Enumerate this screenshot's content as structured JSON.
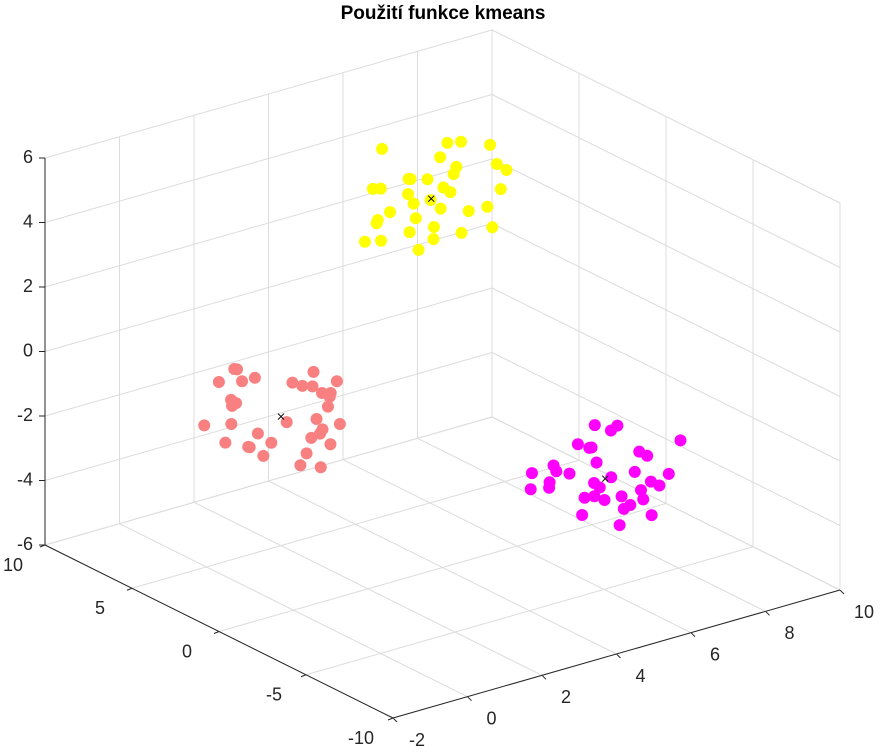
{
  "chart_data": {
    "type": "scatter3d",
    "title": "Použití funkce kmeans",
    "xlim": [
      -2,
      10
    ],
    "xticks": [
      -2,
      0,
      2,
      4,
      6,
      8,
      10
    ],
    "ylim": [
      -10,
      10
    ],
    "yticks": [
      -10,
      -5,
      0,
      5,
      10
    ],
    "zlim": [
      -6,
      6
    ],
    "zticks": [
      -6,
      -4,
      -2,
      0,
      2,
      4,
      6
    ],
    "grid": true,
    "series": [
      {
        "color": "#ffff00",
        "marker": "o",
        "x": [
          6.8,
          5.3,
          7.3,
          8.0,
          6.1,
          5.6,
          7.6,
          6.5,
          5.0,
          7.1,
          7.8,
          6.3,
          5.8,
          7.4,
          5.4,
          6.9,
          8.1,
          6.0,
          6.7,
          5.2,
          7.2,
          6.4,
          7.5,
          5.7,
          7.0,
          5.1,
          7.7,
          6.2,
          6.6,
          5.9,
          7.3,
          5.5,
          7.9,
          6.7,
          5.6
        ],
        "y": [
          5.2,
          6.5,
          7.2,
          5.7,
          4.6,
          6.9,
          6.2,
          4.9,
          6.6,
          7.5,
          5.4,
          6.3,
          5.8,
          4.7,
          7.0,
          6.7,
          5.1,
          7.3,
          5.5,
          6.1,
          6.8,
          4.5,
          6.4,
          5.3,
          7.1,
          5.9,
          4.8,
          6.6,
          7.4,
          5.6,
          6.0,
          7.0,
          5.0,
          6.3,
          5.4
        ],
        "z": [
          4.1,
          2.6,
          3.7,
          1.7,
          3.2,
          4.6,
          2.2,
          3.5,
          2.0,
          3.0,
          4.4,
          1.4,
          3.9,
          2.8,
          3.4,
          1.8,
          3.6,
          2.4,
          4.8,
          2.1,
          2.9,
          4.2,
          1.5,
          3.3,
          2.5,
          3.8,
          4.0,
          1.9,
          3.2,
          2.7,
          4.5,
          2.3,
          3.1,
          1.6,
          3.6
        ]
      },
      {
        "color": "#f88080",
        "marker": "o",
        "x": [
          1.2,
          2.5,
          3.2,
          1.7,
          0.6,
          2.9,
          2.2,
          0.9,
          2.6,
          3.5,
          1.4,
          2.3,
          1.8,
          0.7,
          3.0,
          2.7,
          1.1,
          3.3,
          1.5,
          2.1,
          2.8,
          0.5,
          2.4,
          1.3,
          3.1,
          1.9,
          0.8,
          2.6,
          3.4,
          1.6,
          2.0,
          3.0,
          1.0,
          2.3,
          1.4
        ],
        "y": [
          6.1,
          4.6,
          5.7,
          3.7,
          5.2,
          6.6,
          4.2,
          5.5,
          4.0,
          5.0,
          6.4,
          3.4,
          5.9,
          4.8,
          5.4,
          3.8,
          5.6,
          4.4,
          6.8,
          4.1,
          4.9,
          6.2,
          3.5,
          5.3,
          4.5,
          5.8,
          6.0,
          3.9,
          5.2,
          4.7,
          6.5,
          4.3,
          5.1,
          3.6,
          5.6
        ],
        "z": [
          -1.7,
          -3.2,
          -1.2,
          -0.5,
          -2.4,
          -2.9,
          -0.9,
          -2.0,
          -3.5,
          -1.4,
          -0.7,
          -2.2,
          -2.7,
          -1.1,
          -3.1,
          -1.6,
          -0.4,
          -2.5,
          -1.8,
          -3.3,
          -1.3,
          -2.1,
          -1.0,
          -2.8,
          -1.5,
          -3.4,
          -0.8,
          -2.3,
          -1.9,
          -2.6,
          -1.2,
          -3.0,
          -0.6,
          -1.8,
          -2.9
        ]
      },
      {
        "color": "#ff00ff",
        "marker": "o",
        "x": [
          7.6,
          6.1,
          7.2,
          5.2,
          6.7,
          8.1,
          5.7,
          7.0,
          5.5,
          6.5,
          7.9,
          4.9,
          7.4,
          6.3,
          6.9,
          5.3,
          7.1,
          5.9,
          8.3,
          5.6,
          6.4,
          7.7,
          5.0,
          6.8,
          6.0,
          7.3,
          7.5,
          5.4,
          6.7,
          6.2,
          8.0,
          5.8,
          6.6,
          5.1,
          7.1
        ],
        "y": [
          -3.7,
          -5.2,
          -3.2,
          -2.5,
          -4.4,
          -4.9,
          -2.9,
          -4.0,
          -5.5,
          -3.4,
          -2.7,
          -4.2,
          -4.7,
          -3.1,
          -5.1,
          -3.6,
          -2.4,
          -4.5,
          -3.8,
          -5.3,
          -3.3,
          -4.1,
          -3.0,
          -4.8,
          -3.5,
          -5.4,
          -2.8,
          -4.3,
          -3.9,
          -4.6,
          -3.2,
          -5.0,
          -2.6,
          -3.8,
          -4.9
        ],
        "z": [
          -3.8,
          -2.5,
          -1.8,
          -3.3,
          -4.4,
          -2.1,
          -2.8,
          -4.1,
          -2.4,
          -1.5,
          -3.6,
          -2.7,
          -3.2,
          -4.3,
          -2.0,
          -2.3,
          -3.9,
          -1.7,
          -3.5,
          -2.9,
          -2.2,
          -4.5,
          -2.6,
          -3.7,
          -1.9,
          -3.1,
          -4.2,
          -2.4,
          -1.6,
          -3.4,
          -3.0,
          -2.0,
          -4.0,
          -2.7,
          -3.6
        ]
      },
      {
        "color": "#000000",
        "marker": "x",
        "x": [
          6.5,
          2.0,
          6.5
        ],
        "y": [
          6.0,
          5.0,
          -4.0
        ],
        "z": [
          3.0,
          -2.0,
          -3.0
        ]
      }
    ]
  }
}
